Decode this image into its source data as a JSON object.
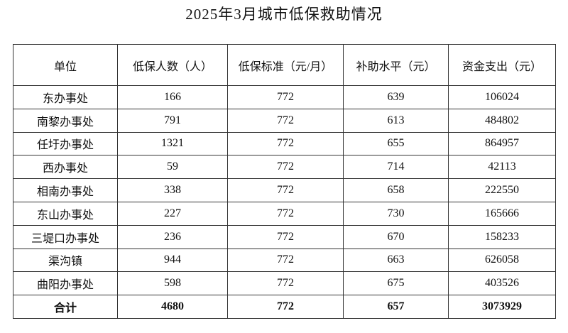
{
  "header": {
    "title": "2025年3月城市低保救助情况"
  },
  "table": {
    "columns": [
      "单位",
      "低保人数（人）",
      "低保标准（元/月）",
      "补助水平（元）",
      "资金支出（元）"
    ],
    "rows": [
      [
        "东办事处",
        166,
        772,
        639,
        106024
      ],
      [
        "南黎办事处",
        791,
        772,
        613,
        484802
      ],
      [
        "任圩办事处",
        1321,
        772,
        655,
        864957
      ],
      [
        "西办事处",
        59,
        772,
        714,
        42113
      ],
      [
        "相南办事处",
        338,
        772,
        658,
        222550
      ],
      [
        "东山办事处",
        227,
        772,
        730,
        165666
      ],
      [
        "三堤口办事处",
        236,
        772,
        670,
        158233
      ],
      [
        "渠沟镇",
        944,
        772,
        663,
        626058
      ],
      [
        "曲阳办事处",
        598,
        772,
        675,
        403526
      ]
    ],
    "total": [
      "合计",
      4680,
      772,
      657,
      3073929
    ]
  }
}
